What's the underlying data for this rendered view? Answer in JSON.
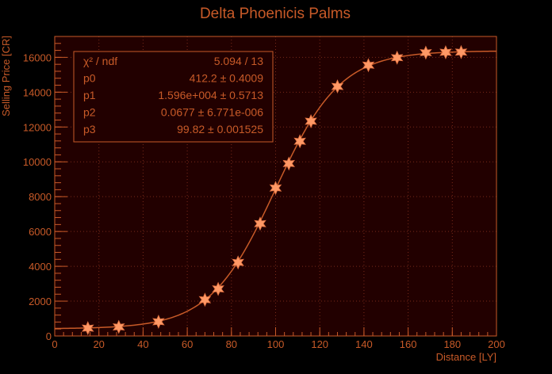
{
  "colors": {
    "background": "#000000",
    "plot_background": "#220000",
    "accent": "#c85a28",
    "marker": "#ff9966",
    "grid": "#7a2a1a"
  },
  "chart_data": {
    "type": "scatter",
    "title": "Delta Phoenicis Palms",
    "xlabel": "Distance [LY]",
    "ylabel": "Selling Price [CR]",
    "xlim": [
      0,
      200
    ],
    "ylim": [
      0,
      17200
    ],
    "xticks": [
      0,
      20,
      40,
      60,
      80,
      100,
      120,
      140,
      160,
      180,
      200
    ],
    "yticks": [
      0,
      2000,
      4000,
      6000,
      8000,
      10000,
      12000,
      14000,
      16000
    ],
    "grid": true,
    "marker": "star",
    "points": {
      "x": [
        15,
        29,
        47,
        68,
        74,
        83,
        93,
        100,
        106,
        111,
        116,
        128,
        142,
        155,
        168,
        177,
        184
      ],
      "y": [
        450,
        520,
        820,
        2080,
        2700,
        4220,
        6450,
        8500,
        9900,
        11180,
        12330,
        14330,
        15550,
        15980,
        16270,
        16290,
        16300
      ]
    },
    "fit": {
      "function": "logistic",
      "p0": 412.2,
      "p1": 15960,
      "p2": 0.0677,
      "p3": 99.82
    },
    "legend_position": "top-left",
    "stats": [
      {
        "label": "χ² / ndf",
        "value": "5.094 / 13"
      },
      {
        "label": "p0",
        "value": "412.2 ± 0.4009"
      },
      {
        "label": "p1",
        "value": "1.596e+004 ± 0.5713"
      },
      {
        "label": "p2",
        "value": "0.0677 ± 6.771e-006"
      },
      {
        "label": "p3",
        "value": "99.82 ± 0.001525"
      }
    ]
  }
}
